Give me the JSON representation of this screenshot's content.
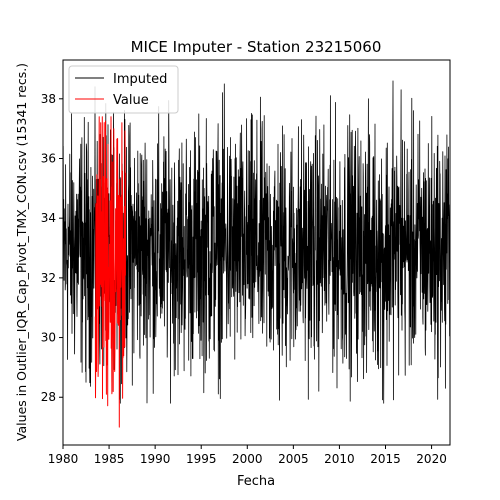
{
  "chart_data": {
    "type": "line",
    "title": "MICE Imputer - Station 23215060",
    "xlabel": "Fecha",
    "ylabel": "Values in Outlier_IQR_Cap_Pivot_TMX_CON.csv (15341 recs.)",
    "xlim": [
      1980.0,
      2022.0
    ],
    "ylim": [
      26.4,
      39.3
    ],
    "x_ticks": [
      "1980",
      "1985",
      "1990",
      "1995",
      "2000",
      "2005",
      "2010",
      "2015",
      "2020"
    ],
    "y_ticks": [
      "28",
      "30",
      "32",
      "34",
      "36",
      "38"
    ],
    "grid": false,
    "legend_position": "upper-left",
    "series": [
      {
        "name": "Imputed",
        "color": "#000000",
        "x_range": [
          1980.0,
          2022.0
        ],
        "mean": 33.0,
        "typical_low": 29.5,
        "typical_high": 36.5,
        "max": 38.6,
        "min": 27.8,
        "extremes": [
          {
            "x": 1997.5,
            "y": 38.5
          },
          {
            "x": 2015.8,
            "y": 38.6
          },
          {
            "x": 2016.7,
            "y": 38.3
          },
          {
            "x": 2003.5,
            "y": 27.9
          },
          {
            "x": 2014.8,
            "y": 27.8
          },
          {
            "x": 1982.5,
            "y": 28.5
          },
          {
            "x": 2021.5,
            "y": 28.3
          }
        ]
      },
      {
        "name": "Value",
        "color": "#ff0000",
        "x_range": [
          1983.5,
          1986.8
        ],
        "mean": 32.8,
        "typical_low": 28.5,
        "typical_high": 37.0,
        "max": 37.4,
        "min": 27.0,
        "extremes": [
          {
            "x": 1985.2,
            "y": 37.4
          },
          {
            "x": 1986.4,
            "y": 37.2
          },
          {
            "x": 1984.1,
            "y": 37.2
          },
          {
            "x": 1986.1,
            "y": 27.0
          },
          {
            "x": 1984.7,
            "y": 28.1
          }
        ]
      }
    ]
  }
}
